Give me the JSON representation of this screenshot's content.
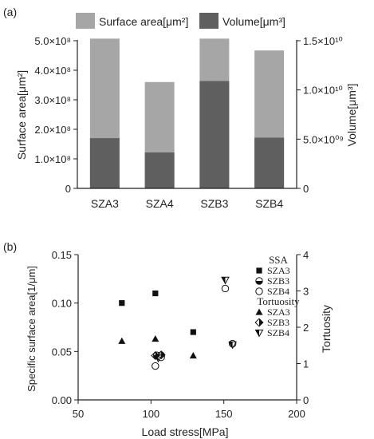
{
  "chart_data": [
    {
      "panel_label": "(a)",
      "type": "bar",
      "categories": [
        "SZA3",
        "SZA4",
        "SZB3",
        "SZB4"
      ],
      "series": [
        {
          "name": "Surface area[μm²]",
          "axis": "left",
          "color": "#a6a6a6",
          "values": [
            507000000.0,
            360000000.0,
            507000000.0,
            467000000.0
          ]
        },
        {
          "name": "Volume[μm³]",
          "axis": "right",
          "color": "#5f5f5f",
          "values": [
            5100000000.0,
            3650000000.0,
            10900000000.0,
            5150000000.0
          ]
        }
      ],
      "ylabel": "Surface area[μm²]",
      "y2label": "Volume[μm³]",
      "ylim": [
        0,
        500000000.0
      ],
      "y2lim": [
        0,
        15000000000.0
      ],
      "yticks": [
        {
          "value": 0,
          "label": "0"
        },
        {
          "value": 100000000.0,
          "label": "1.0×10⁸"
        },
        {
          "value": 200000000.0,
          "label": "2.0×10⁸"
        },
        {
          "value": 300000000.0,
          "label": "3.0×10⁸"
        },
        {
          "value": 400000000.0,
          "label": "4.0×10⁸"
        },
        {
          "value": 500000000.0,
          "label": "5.0×10⁸"
        }
      ],
      "y2ticks": [
        {
          "value": 0,
          "label": "0"
        },
        {
          "value": 5000000000.0,
          "label": "5.0×10⁰⁹"
        },
        {
          "value": 10000000000.0,
          "label": "1.0×10¹⁰"
        },
        {
          "value": 15000000000.0,
          "label": "1.5×10¹⁰"
        }
      ],
      "legend_position": "top",
      "grid": false
    },
    {
      "panel_label": "(b)",
      "type": "scatter",
      "xlabel": "Load  stress[MPa]",
      "ylabel": "Specific surface area[1/μm]",
      "y2label": "Tortuosity",
      "xlim": [
        50,
        200
      ],
      "ylim": [
        0,
        0.15
      ],
      "y2lim": [
        0,
        4
      ],
      "xticks": [
        {
          "value": 50,
          "label": "50"
        },
        {
          "value": 100,
          "label": "100"
        },
        {
          "value": 150,
          "label": "150"
        },
        {
          "value": 200,
          "label": "200"
        }
      ],
      "yticks": [
        {
          "value": 0,
          "label": "0.00"
        },
        {
          "value": 0.05,
          "label": "0.05"
        },
        {
          "value": 0.1,
          "label": "0.10"
        },
        {
          "value": 0.15,
          "label": "0.15"
        }
      ],
      "y2ticks": [
        {
          "value": 0,
          "label": "0"
        },
        {
          "value": 1,
          "label": "1"
        },
        {
          "value": 2,
          "label": "2"
        },
        {
          "value": 3,
          "label": "3"
        },
        {
          "value": 4,
          "label": "4"
        }
      ],
      "legend_groups": [
        {
          "title": "SSA",
          "entries": [
            {
              "name": "SZA3",
              "marker": "square-filled"
            },
            {
              "name": "SZB3",
              "marker": "circle-half"
            },
            {
              "name": "SZB4",
              "marker": "circle-open"
            }
          ]
        },
        {
          "title": "Tortuosity",
          "entries": [
            {
              "name": "SZA3",
              "marker": "triangle-filled"
            },
            {
              "name": "SZB3",
              "marker": "diamond-half"
            },
            {
              "name": "SZB4",
              "marker": "triangle-down-half"
            }
          ]
        }
      ],
      "series": [
        {
          "group": "SSA",
          "name": "SZA3",
          "axis": "left",
          "marker": "square-filled",
          "points": [
            [
              80,
              0.1
            ],
            [
              103,
              0.11
            ],
            [
              129,
              0.07
            ]
          ]
        },
        {
          "group": "SSA",
          "name": "SZB3",
          "axis": "left",
          "marker": "circle-half",
          "points": [
            [
              104,
              0.046
            ],
            [
              107,
              0.046
            ]
          ]
        },
        {
          "group": "SSA",
          "name": "SZB4",
          "axis": "left",
          "marker": "circle-open",
          "points": [
            [
              103,
              0.035
            ],
            [
              107,
              0.044
            ],
            [
              151,
              0.115
            ],
            [
              156,
              0.058
            ]
          ]
        },
        {
          "group": "Tortuosity",
          "name": "SZA3",
          "axis": "right",
          "marker": "triangle-filled",
          "points": [
            [
              80,
              1.62
            ],
            [
              103,
              1.68
            ],
            [
              129,
              1.22
            ]
          ]
        },
        {
          "group": "Tortuosity",
          "name": "SZB3",
          "axis": "right",
          "marker": "diamond-half",
          "points": [
            [
              103,
              1.22
            ],
            [
              107,
              1.24
            ]
          ]
        },
        {
          "group": "Tortuosity",
          "name": "SZB4",
          "axis": "right",
          "marker": "triangle-down-half",
          "points": [
            [
              105,
              1.15
            ],
            [
              151,
              3.3
            ],
            [
              156,
              1.52
            ]
          ]
        }
      ],
      "grid": false
    }
  ]
}
